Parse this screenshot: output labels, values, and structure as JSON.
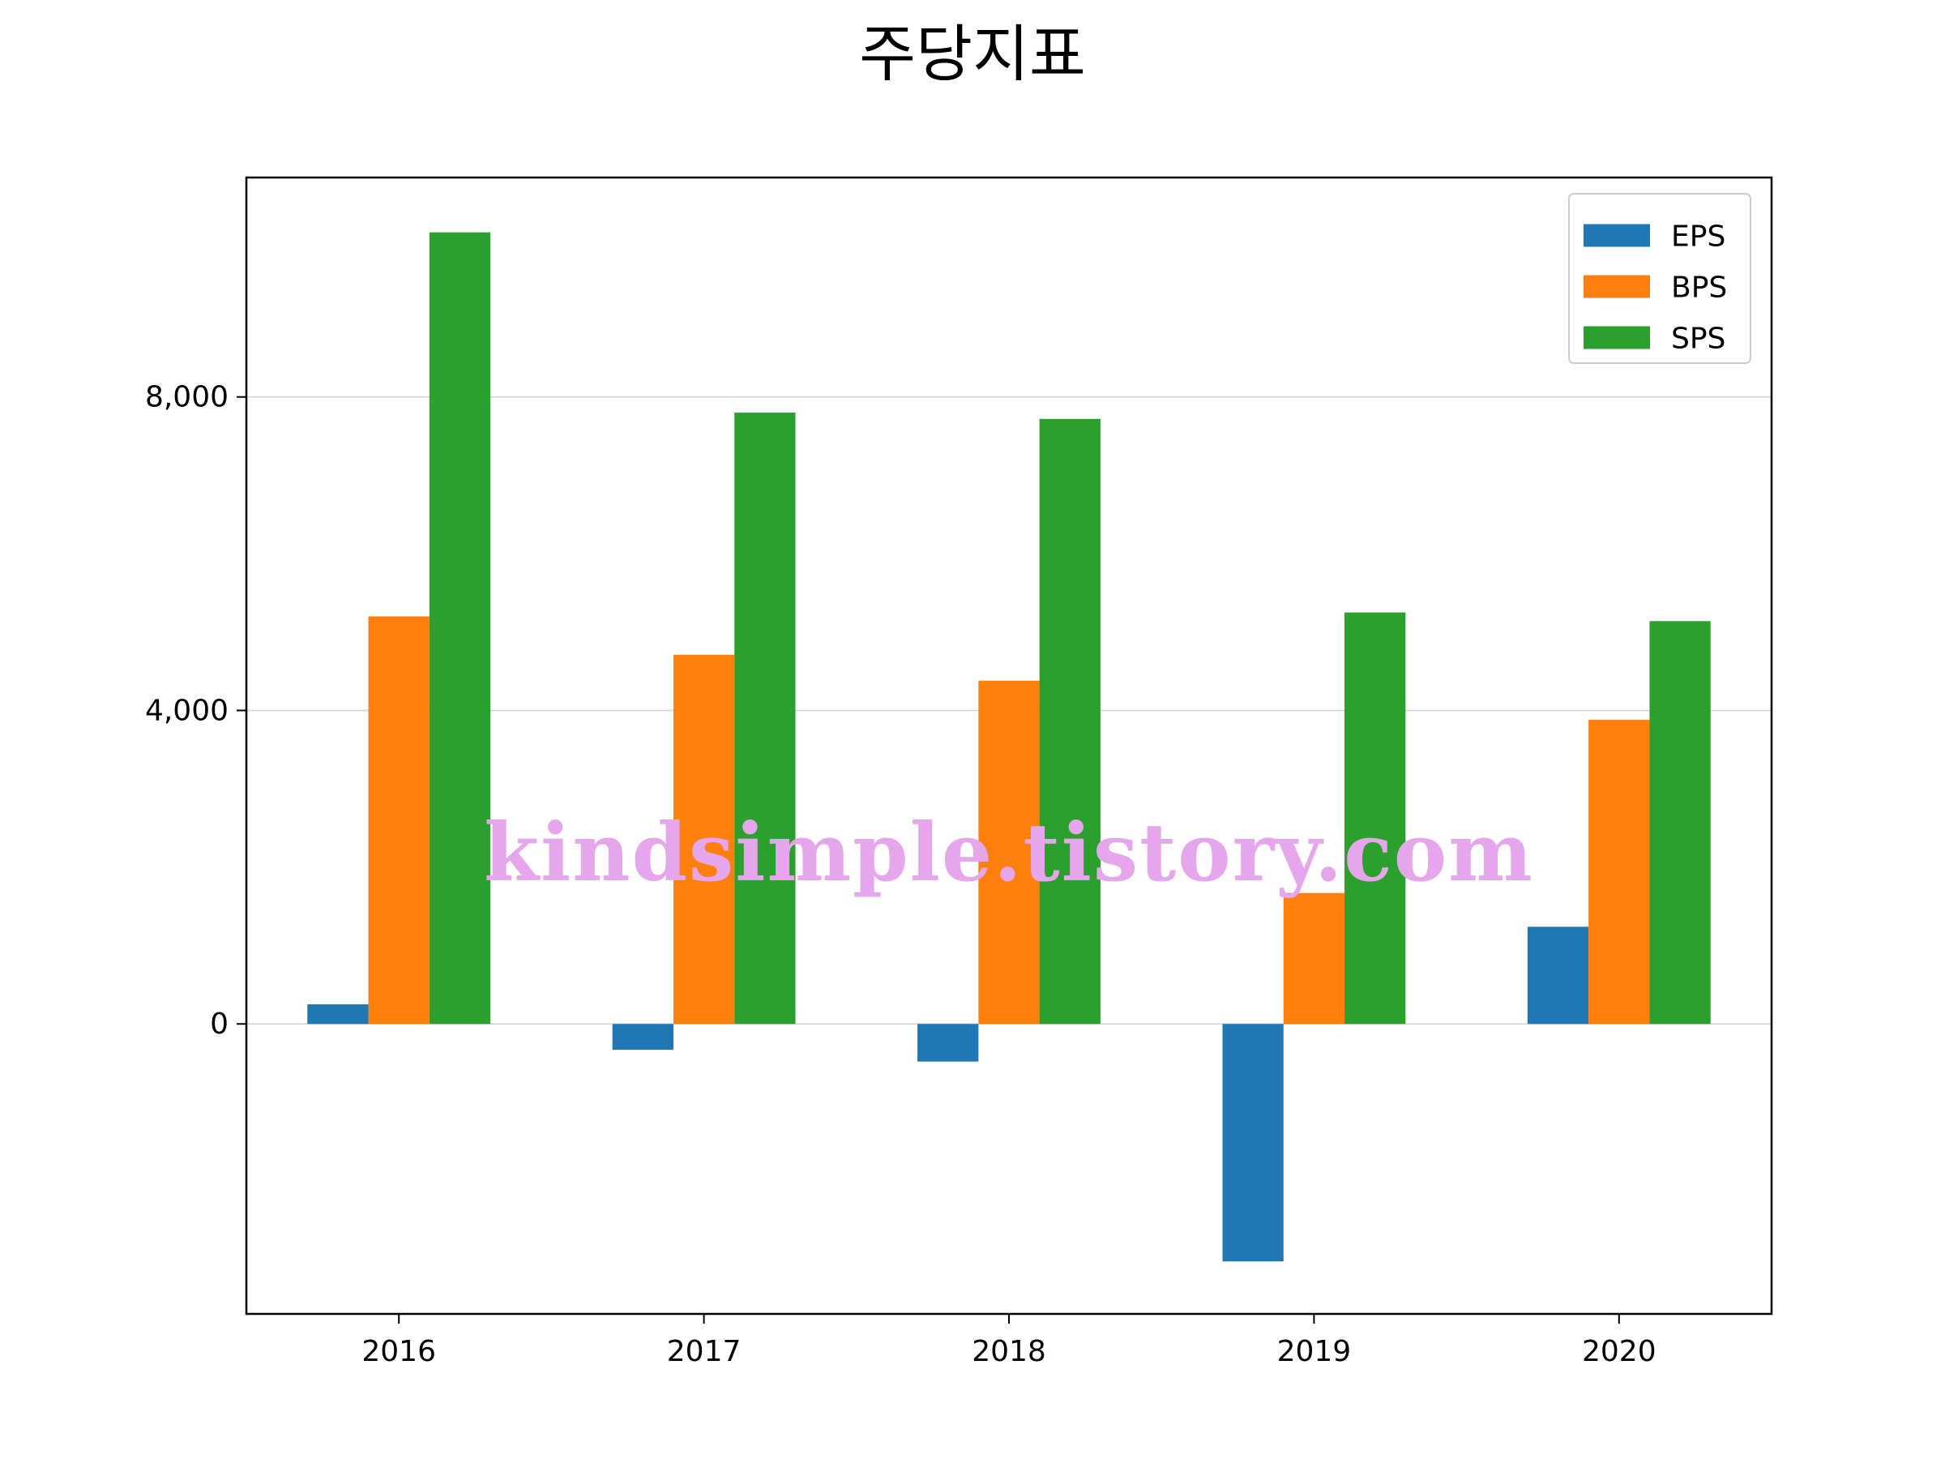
{
  "chart_data": {
    "type": "bar",
    "title": "주당지표",
    "xlabel": "",
    "ylabel": "",
    "categories": [
      "2016",
      "2017",
      "2018",
      "2019",
      "2020"
    ],
    "series": [
      {
        "name": "EPS",
        "color": "#1f77b4",
        "values": [
          250,
          -330,
          -480,
          -3030,
          1240
        ]
      },
      {
        "name": "BPS",
        "color": "#ff7f0e",
        "values": [
          5200,
          4710,
          4380,
          1670,
          3880
        ]
      },
      {
        "name": "SPS",
        "color": "#2ca02c",
        "values": [
          10100,
          7800,
          7720,
          5250,
          5140
        ]
      }
    ],
    "ylim": [
      -3700,
      10800
    ],
    "yticks": [
      0,
      4000,
      8000
    ],
    "ytick_labels": [
      "0",
      "4,000",
      "8,000"
    ],
    "grid": "horizontal",
    "legend_position": "top-right",
    "watermark": "kindsimple.tistory.com"
  }
}
